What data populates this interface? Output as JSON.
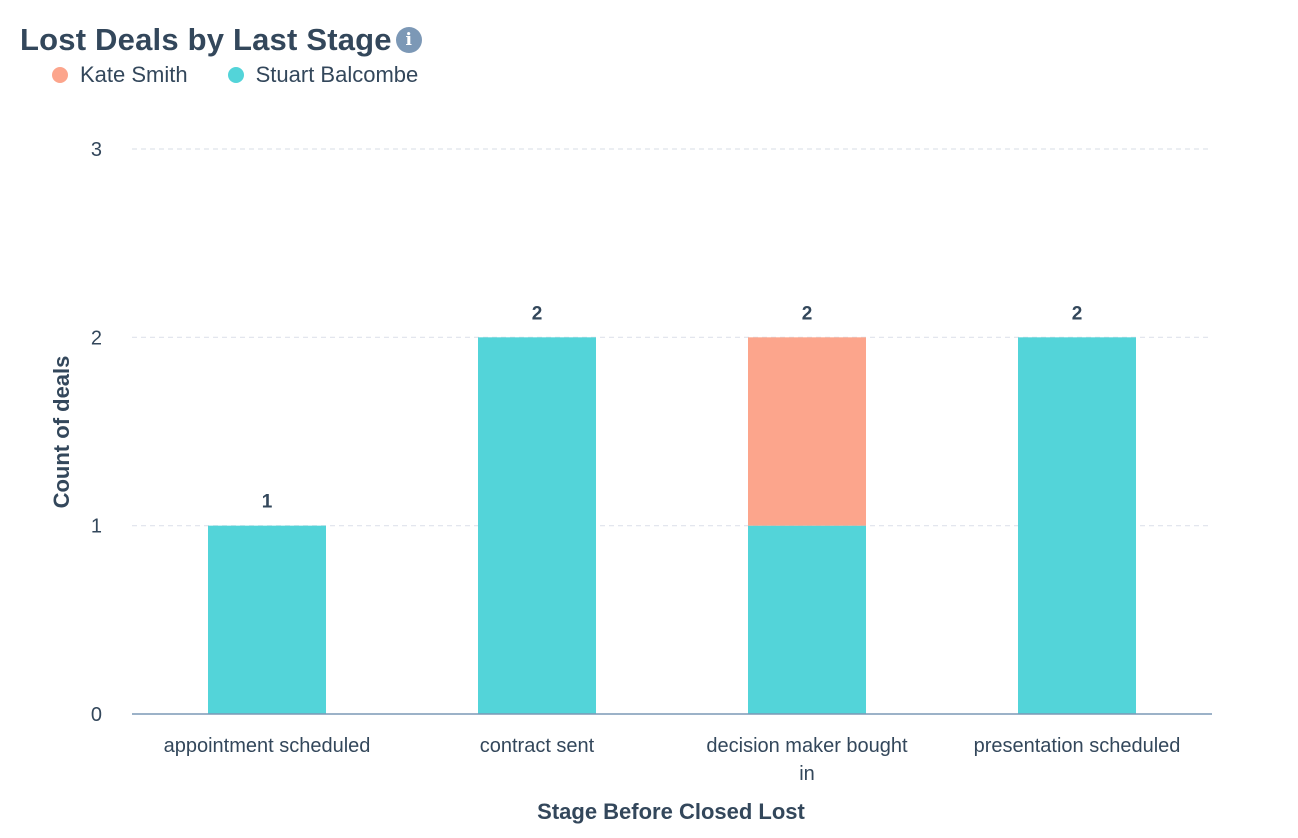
{
  "header": {
    "title": "Lost Deals by Last Stage",
    "info_icon": "info-circle-icon"
  },
  "colors": {
    "kate_smith": "#fca58c",
    "stuart_balcombe": "#53d4d9",
    "grid": "#dfe3eb",
    "axis": "#7c98b6",
    "text": "#33475b"
  },
  "legend": [
    {
      "label": "Kate Smith",
      "color": "#fca58c"
    },
    {
      "label": "Stuart Balcombe",
      "color": "#53d4d9"
    }
  ],
  "chart_data": {
    "type": "bar",
    "stacked": true,
    "title": "Lost Deals by Last Stage",
    "xlabel": "Stage Before Closed Lost",
    "ylabel": "Count of deals",
    "ylim": [
      0,
      3
    ],
    "yticks": [
      0,
      1,
      2,
      3
    ],
    "grid": true,
    "legend_position": "top-left",
    "categories": [
      [
        "appointment scheduled"
      ],
      [
        "contract sent"
      ],
      [
        "decision maker bought",
        "in"
      ],
      [
        "presentation scheduled"
      ]
    ],
    "series": [
      {
        "name": "Stuart Balcombe",
        "color": "#53d4d9",
        "values": [
          1,
          2,
          1,
          2
        ]
      },
      {
        "name": "Kate Smith",
        "color": "#fca58c",
        "values": [
          0,
          0,
          1,
          0
        ]
      }
    ],
    "totals": [
      1,
      2,
      2,
      2
    ]
  }
}
